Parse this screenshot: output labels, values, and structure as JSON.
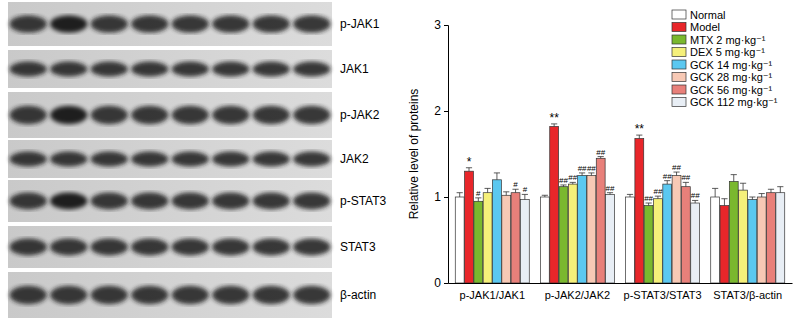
{
  "chart_data": {
    "type": "bar",
    "y_label": "Relative level of proteins",
    "categories": [
      "p-JAK1/JAK1",
      "p-JAK2/JAK2",
      "p-STAT3/STAT3",
      "STAT3/β-actin"
    ],
    "ylim": [
      0,
      3
    ],
    "yticks": [
      0,
      1,
      2,
      3
    ],
    "grid": false,
    "legend": "upper right",
    "series": [
      {
        "name": "Normal",
        "color": "#ffffff",
        "values": [
          1.0,
          1.0,
          1.0,
          1.0
        ],
        "errors": [
          0.05,
          0.02,
          0.03,
          0.1
        ],
        "significance": [
          null,
          null,
          null,
          null
        ]
      },
      {
        "name": "Model",
        "color": "#e8262a",
        "values": [
          1.3,
          1.82,
          1.68,
          0.9
        ],
        "errors": [
          0.04,
          0.03,
          0.04,
          0.08
        ],
        "significance": [
          "*",
          "**",
          "**",
          null
        ]
      },
      {
        "name": "MTX 2 mg·kg⁻¹",
        "color": "#7ab82e",
        "values": [
          0.95,
          1.12,
          0.9,
          1.18
        ],
        "errors": [
          0.04,
          0.02,
          0.03,
          0.08
        ],
        "significance": [
          "#",
          "##",
          "##",
          null
        ]
      },
      {
        "name": "DEX 5 mg·kg⁻¹",
        "color": "#f5f07a",
        "values": [
          1.05,
          1.15,
          0.98,
          1.08
        ],
        "errors": [
          0.05,
          0.02,
          0.03,
          0.08
        ],
        "significance": [
          null,
          "##",
          "##",
          null
        ]
      },
      {
        "name": "GCK 14 mg·kg⁻¹",
        "color": "#5bc8f0",
        "values": [
          1.2,
          1.25,
          1.15,
          0.97
        ],
        "errors": [
          0.08,
          0.03,
          0.04,
          0.03
        ],
        "significance": [
          null,
          "##",
          "##",
          null
        ]
      },
      {
        "name": "GCK 28 mg·kg⁻¹",
        "color": "#f7c9b5",
        "values": [
          1.02,
          1.25,
          1.25,
          1.0
        ],
        "errors": [
          0.04,
          0.03,
          0.04,
          0.04
        ],
        "significance": [
          null,
          "##",
          "##",
          null
        ]
      },
      {
        "name": "GCK 56 mg·kg⁻¹",
        "color": "#e8807a",
        "values": [
          1.05,
          1.45,
          1.12,
          1.05
        ],
        "errors": [
          0.04,
          0.02,
          0.05,
          0.04
        ],
        "significance": [
          "#",
          "##",
          "##",
          null
        ]
      },
      {
        "name": "GCK 112 mg·kg⁻¹",
        "color": "#e8eef5",
        "values": [
          0.97,
          1.03,
          0.93,
          1.05
        ],
        "errors": [
          0.06,
          0.02,
          0.03,
          0.07
        ],
        "significance": [
          "#",
          "##",
          "##",
          null
        ]
      }
    ]
  },
  "blot": {
    "labels": [
      "p-JAK1",
      "JAK1",
      "p-JAK2",
      "JAK2",
      "p-STAT3",
      "STAT3",
      "β-actin"
    ]
  }
}
